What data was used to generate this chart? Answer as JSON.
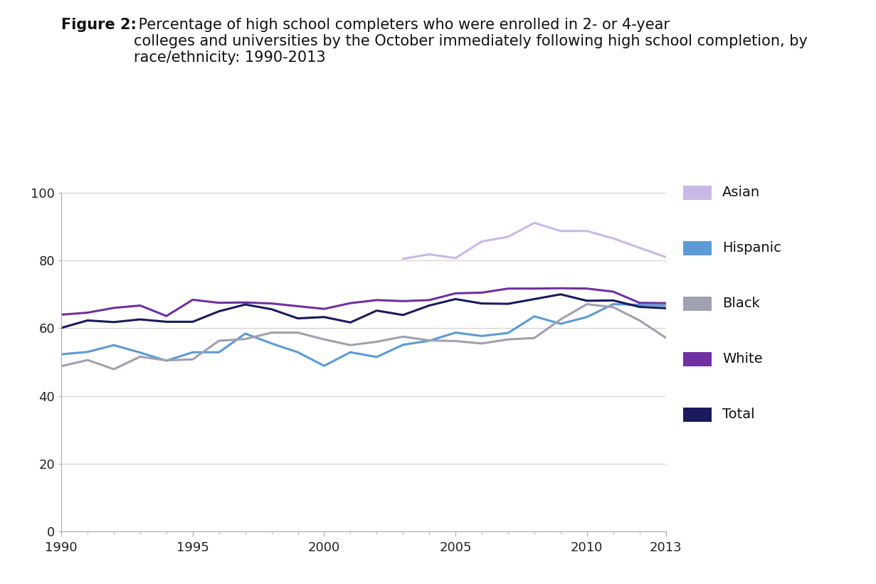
{
  "title_bold": "Figure 2:",
  "title_regular": " Percentage of high school completers who were enrolled in 2- or 4-year\ncolleges and universities by the October immediately following high school completion, by\nrace/ethnicity: 1990-2013",
  "years": [
    1990,
    1991,
    1992,
    1993,
    1994,
    1995,
    1996,
    1997,
    1998,
    1999,
    2000,
    2001,
    2002,
    2003,
    2004,
    2005,
    2006,
    2007,
    2008,
    2009,
    2010,
    2011,
    2012,
    2013
  ],
  "asian": [
    null,
    null,
    null,
    null,
    null,
    null,
    null,
    null,
    null,
    null,
    null,
    null,
    null,
    80.5,
    81.8,
    80.7,
    85.6,
    87.0,
    91.1,
    88.7,
    88.7,
    86.5,
    null,
    81.0
  ],
  "hispanic": [
    52.3,
    53.0,
    55.0,
    52.8,
    50.4,
    52.9,
    52.9,
    58.4,
    55.5,
    52.9,
    48.9,
    52.9,
    51.5,
    55.1,
    56.3,
    58.7,
    57.7,
    58.6,
    63.5,
    61.3,
    63.3,
    67.1,
    66.9,
    66.7
  ],
  "black": [
    48.8,
    50.6,
    47.9,
    51.6,
    50.5,
    50.8,
    56.3,
    56.8,
    58.7,
    58.7,
    56.7,
    55.0,
    56.0,
    57.5,
    56.4,
    56.2,
    55.5,
    56.7,
    57.1,
    62.6,
    67.1,
    66.2,
    62.3,
    57.2
  ],
  "white": [
    64.0,
    64.6,
    66.0,
    66.7,
    63.6,
    68.4,
    67.5,
    67.6,
    67.3,
    66.5,
    65.7,
    67.4,
    68.3,
    68.0,
    68.3,
    70.3,
    70.5,
    71.7,
    71.7,
    71.8,
    71.7,
    70.8,
    67.5,
    67.4
  ],
  "total": [
    60.1,
    62.3,
    61.8,
    62.6,
    61.9,
    61.9,
    65.0,
    67.0,
    65.6,
    62.9,
    63.3,
    61.7,
    65.2,
    63.9,
    66.7,
    68.6,
    67.3,
    67.2,
    68.6,
    70.0,
    68.1,
    68.2,
    66.3,
    65.9
  ],
  "colors": {
    "asian": "#c9b8e8",
    "hispanic": "#5b9bd5",
    "black": "#a0a0b0",
    "white": "#7030a0",
    "total": "#1a1a5e"
  },
  "legend_labels": [
    "Asian",
    "Hispanic",
    "Black",
    "White",
    "Total"
  ],
  "legend_colors": [
    "#c9b8e8",
    "#5b9bd5",
    "#a0a0b0",
    "#7030a0",
    "#1a1a5e"
  ],
  "ylim": [
    0,
    100
  ],
  "yticks": [
    0,
    20,
    40,
    60,
    80,
    100
  ],
  "xticks": [
    1990,
    1995,
    2000,
    2005,
    2010,
    2013
  ],
  "linewidth": 2.2,
  "title_fontsize": 15,
  "tick_fontsize": 13
}
